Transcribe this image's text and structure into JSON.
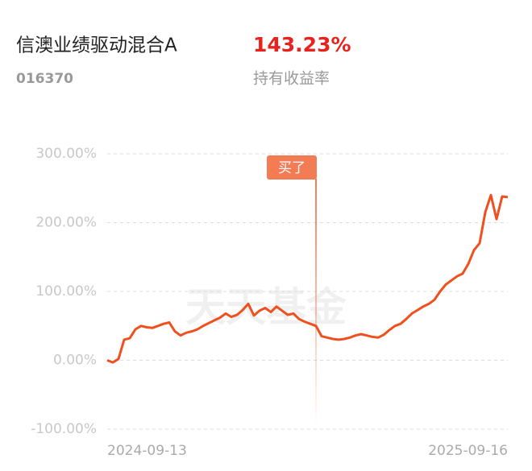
{
  "chart_data": {
    "type": "line",
    "title": "信澳业绩驱动混合A",
    "fund_code": "016370",
    "return_value": "143.23%",
    "return_label": "持有收益率",
    "annotation": "买了",
    "watermark": "天天基金",
    "color": "#f0501e",
    "grid": true,
    "categories": [
      "2024-09-13",
      null,
      null,
      null,
      null,
      null,
      null,
      null,
      null,
      null,
      null,
      null,
      null,
      null,
      null,
      null,
      null,
      null,
      null,
      null,
      null,
      null,
      null,
      null,
      null,
      null,
      null,
      null,
      null,
      null,
      null,
      null,
      null,
      null,
      null,
      null,
      null,
      null,
      null,
      null,
      null,
      null,
      null,
      null,
      null,
      null,
      null,
      null,
      null,
      null,
      null,
      null,
      null,
      null,
      null,
      null,
      null,
      null,
      null,
      null,
      null,
      null,
      null,
      null,
      null,
      null,
      null,
      null,
      null,
      null,
      null,
      "2025-09-16"
    ],
    "values": [
      0,
      -3,
      2,
      30,
      32,
      45,
      50,
      48,
      47,
      50,
      53,
      55,
      42,
      36,
      40,
      42,
      45,
      50,
      54,
      58,
      62,
      68,
      63,
      66,
      73,
      82,
      65,
      72,
      76,
      70,
      78,
      72,
      66,
      68,
      60,
      56,
      53,
      50,
      35,
      33,
      31,
      30,
      31,
      33,
      36,
      38,
      36,
      34,
      33,
      37,
      44,
      50,
      53,
      60,
      68,
      73,
      78,
      82,
      88,
      100,
      110,
      116,
      122,
      126,
      140,
      160,
      170,
      215,
      240,
      205,
      238,
      237
    ],
    "ylim": [
      -100,
      300
    ],
    "yticks": [
      {
        "value": -100,
        "label": "-100.00%"
      },
      {
        "value": 0,
        "label": "0.00%"
      },
      {
        "value": 100,
        "label": "100.00%"
      },
      {
        "value": 200,
        "label": "200.00%"
      },
      {
        "value": 300,
        "label": "300.00%"
      }
    ]
  }
}
